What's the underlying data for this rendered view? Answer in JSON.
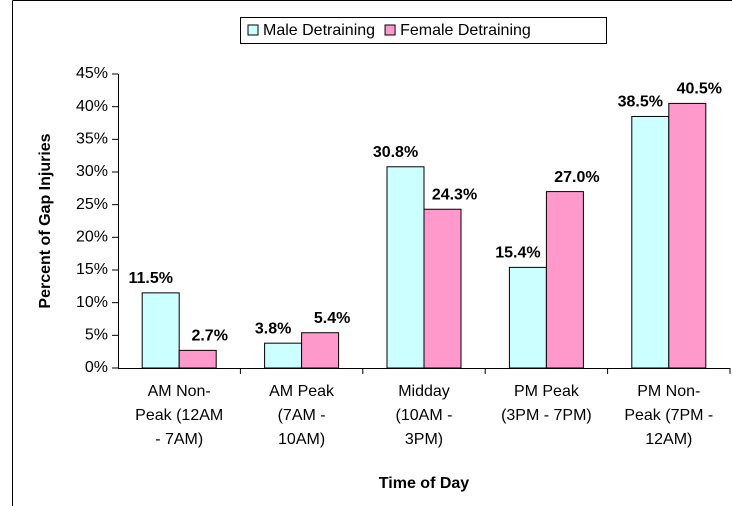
{
  "chart_data": {
    "type": "bar",
    "x_label": "Time of Day",
    "y_label": "Percent of Gap Injuries",
    "categories": [
      "AM Non-\nPeak (12AM\n- 7AM)",
      "AM Peak\n(7AM -\n10AM)",
      "Midday\n(10AM -\n3PM)",
      "PM Peak\n(3PM - 7PM)",
      "PM Non-\nPeak (7PM -\n12AM)"
    ],
    "series": [
      {
        "name": "Male Detraining",
        "color": "#ccffff",
        "values": [
          11.5,
          3.8,
          30.8,
          15.4,
          38.5
        ],
        "value_labels": [
          "11.5%",
          "3.8%",
          "30.8%",
          "15.4%",
          "38.5%"
        ]
      },
      {
        "name": "Female Detraining",
        "color": "#ff99cc",
        "values": [
          2.7,
          5.4,
          24.3,
          27.0,
          40.5
        ],
        "value_labels": [
          "2.7%",
          "5.4%",
          "24.3%",
          "27.0%",
          "40.5%"
        ]
      }
    ],
    "ylim": [
      0,
      45
    ],
    "yticks": [
      {
        "value": 0,
        "label": "0%"
      },
      {
        "value": 5,
        "label": "5%"
      },
      {
        "value": 10,
        "label": "10%"
      },
      {
        "value": 15,
        "label": "15%"
      },
      {
        "value": 20,
        "label": "20%"
      },
      {
        "value": 25,
        "label": "25%"
      },
      {
        "value": 30,
        "label": "30%"
      },
      {
        "value": 35,
        "label": "35%"
      },
      {
        "value": 40,
        "label": "40%"
      },
      {
        "value": 45,
        "label": "45%"
      }
    ],
    "legend": "top"
  }
}
